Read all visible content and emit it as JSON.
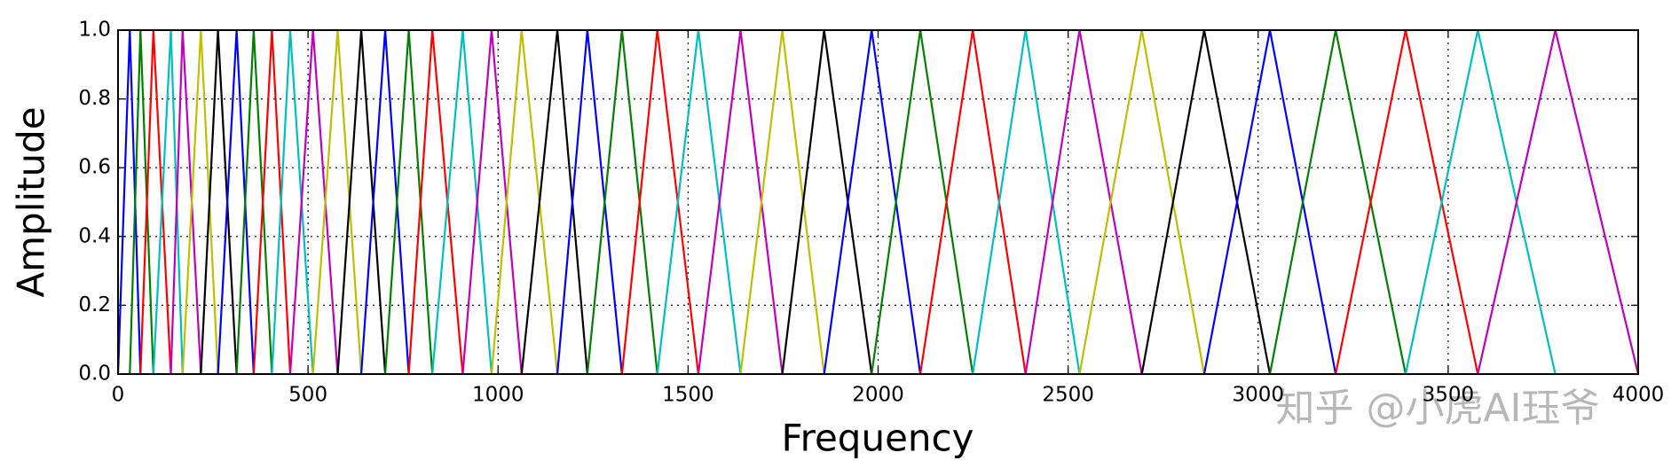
{
  "chart_data": {
    "type": "line",
    "xlabel": "Frequency",
    "ylabel": "Amplitude",
    "annotation": "知乎 @小虎AI珏爷",
    "xlim": [
      0,
      4000
    ],
    "ylim": [
      0,
      1
    ],
    "xticks": [
      0,
      500,
      1000,
      1500,
      2000,
      2500,
      3000,
      3500,
      4000
    ],
    "yticks": [
      {
        "value": 0,
        "label": "0.0"
      },
      {
        "value": 0.2,
        "label": "0.2"
      },
      {
        "value": 0.4,
        "label": "0.4"
      },
      {
        "value": 0.6,
        "label": "0.6"
      },
      {
        "value": 0.8,
        "label": "0.8"
      },
      {
        "value": 1,
        "label": "1.0"
      }
    ],
    "grid": true,
    "series": [
      {
        "color": "#0000ff",
        "x": [
          0,
          31,
          59
        ],
        "values": [
          0,
          1,
          0
        ]
      },
      {
        "color": "#008000",
        "x": [
          31,
          59,
          93
        ],
        "values": [
          0,
          1,
          0
        ]
      },
      {
        "color": "#ff0000",
        "x": [
          59,
          93,
          139
        ],
        "values": [
          0,
          1,
          0
        ]
      },
      {
        "color": "#00bfbf",
        "x": [
          93,
          139,
          170
        ],
        "values": [
          0,
          1,
          0
        ]
      },
      {
        "color": "#bf00bf",
        "x": [
          139,
          170,
          218
        ],
        "values": [
          0,
          1,
          0
        ]
      },
      {
        "color": "#bfbf00",
        "x": [
          170,
          218,
          263
        ],
        "values": [
          0,
          1,
          0
        ]
      },
      {
        "color": "#000000",
        "x": [
          218,
          263,
          312
        ],
        "values": [
          0,
          1,
          0
        ]
      },
      {
        "color": "#0000ff",
        "x": [
          263,
          312,
          357
        ],
        "values": [
          0,
          1,
          0
        ]
      },
      {
        "color": "#008000",
        "x": [
          312,
          357,
          405
        ],
        "values": [
          0,
          1,
          0
        ]
      },
      {
        "color": "#ff0000",
        "x": [
          357,
          405,
          453
        ],
        "values": [
          0,
          1,
          0
        ]
      },
      {
        "color": "#00bfbf",
        "x": [
          405,
          453,
          513
        ],
        "values": [
          0,
          1,
          0
        ]
      },
      {
        "color": "#bf00bf",
        "x": [
          453,
          513,
          578
        ],
        "values": [
          0,
          1,
          0
        ]
      },
      {
        "color": "#bfbf00",
        "x": [
          513,
          578,
          640
        ],
        "values": [
          0,
          1,
          0
        ]
      },
      {
        "color": "#000000",
        "x": [
          578,
          640,
          703
        ],
        "values": [
          0,
          1,
          0
        ]
      },
      {
        "color": "#0000ff",
        "x": [
          640,
          703,
          765
        ],
        "values": [
          0,
          1,
          0
        ]
      },
      {
        "color": "#008000",
        "x": [
          703,
          765,
          827
        ],
        "values": [
          0,
          1,
          0
        ]
      },
      {
        "color": "#ff0000",
        "x": [
          765,
          827,
          907
        ],
        "values": [
          0,
          1,
          0
        ]
      },
      {
        "color": "#00bfbf",
        "x": [
          827,
          907,
          983
        ],
        "values": [
          0,
          1,
          0
        ]
      },
      {
        "color": "#bf00bf",
        "x": [
          907,
          983,
          1062
        ],
        "values": [
          0,
          1,
          0
        ]
      },
      {
        "color": "#bfbf00",
        "x": [
          983,
          1062,
          1156
        ],
        "values": [
          0,
          1,
          0
        ]
      },
      {
        "color": "#000000",
        "x": [
          1062,
          1156,
          1235
        ],
        "values": [
          0,
          1,
          0
        ]
      },
      {
        "color": "#0000ff",
        "x": [
          1156,
          1235,
          1326
        ],
        "values": [
          0,
          1,
          0
        ]
      },
      {
        "color": "#008000",
        "x": [
          1235,
          1326,
          1419
        ],
        "values": [
          0,
          1,
          0
        ]
      },
      {
        "color": "#ff0000",
        "x": [
          1326,
          1419,
          1527
        ],
        "values": [
          0,
          1,
          0
        ]
      },
      {
        "color": "#00bfbf",
        "x": [
          1419,
          1527,
          1638
        ],
        "values": [
          0,
          1,
          0
        ]
      },
      {
        "color": "#bf00bf",
        "x": [
          1527,
          1638,
          1748
        ],
        "values": [
          0,
          1,
          0
        ]
      },
      {
        "color": "#bfbf00",
        "x": [
          1638,
          1748,
          1858
        ],
        "values": [
          0,
          1,
          0
        ]
      },
      {
        "color": "#000000",
        "x": [
          1748,
          1858,
          1983
        ],
        "values": [
          0,
          1,
          0
        ]
      },
      {
        "color": "#0000ff",
        "x": [
          1858,
          1983,
          2111
        ],
        "values": [
          0,
          1,
          0
        ]
      },
      {
        "color": "#008000",
        "x": [
          1983,
          2111,
          2249
        ],
        "values": [
          0,
          1,
          0
        ]
      },
      {
        "color": "#ff0000",
        "x": [
          2111,
          2249,
          2388
        ],
        "values": [
          0,
          1,
          0
        ]
      },
      {
        "color": "#00bfbf",
        "x": [
          2249,
          2388,
          2530
        ],
        "values": [
          0,
          1,
          0
        ]
      },
      {
        "color": "#bf00bf",
        "x": [
          2388,
          2530,
          2694
        ],
        "values": [
          0,
          1,
          0
        ]
      },
      {
        "color": "#bfbf00",
        "x": [
          2530,
          2694,
          2858
        ],
        "values": [
          0,
          1,
          0
        ]
      },
      {
        "color": "#000000",
        "x": [
          2694,
          2858,
          3031
        ],
        "values": [
          0,
          1,
          0
        ]
      },
      {
        "color": "#0000ff",
        "x": [
          2858,
          3031,
          3204
        ],
        "values": [
          0,
          1,
          0
        ]
      },
      {
        "color": "#008000",
        "x": [
          3031,
          3204,
          3388
        ],
        "values": [
          0,
          1,
          0
        ]
      },
      {
        "color": "#ff0000",
        "x": [
          3204,
          3388,
          3578
        ],
        "values": [
          0,
          1,
          0
        ]
      },
      {
        "color": "#00bfbf",
        "x": [
          3388,
          3578,
          3782
        ],
        "values": [
          0,
          1,
          0
        ]
      },
      {
        "color": "#bf00bf",
        "x": [
          3578,
          3782,
          4000
        ],
        "values": [
          0,
          1,
          0
        ]
      }
    ]
  }
}
